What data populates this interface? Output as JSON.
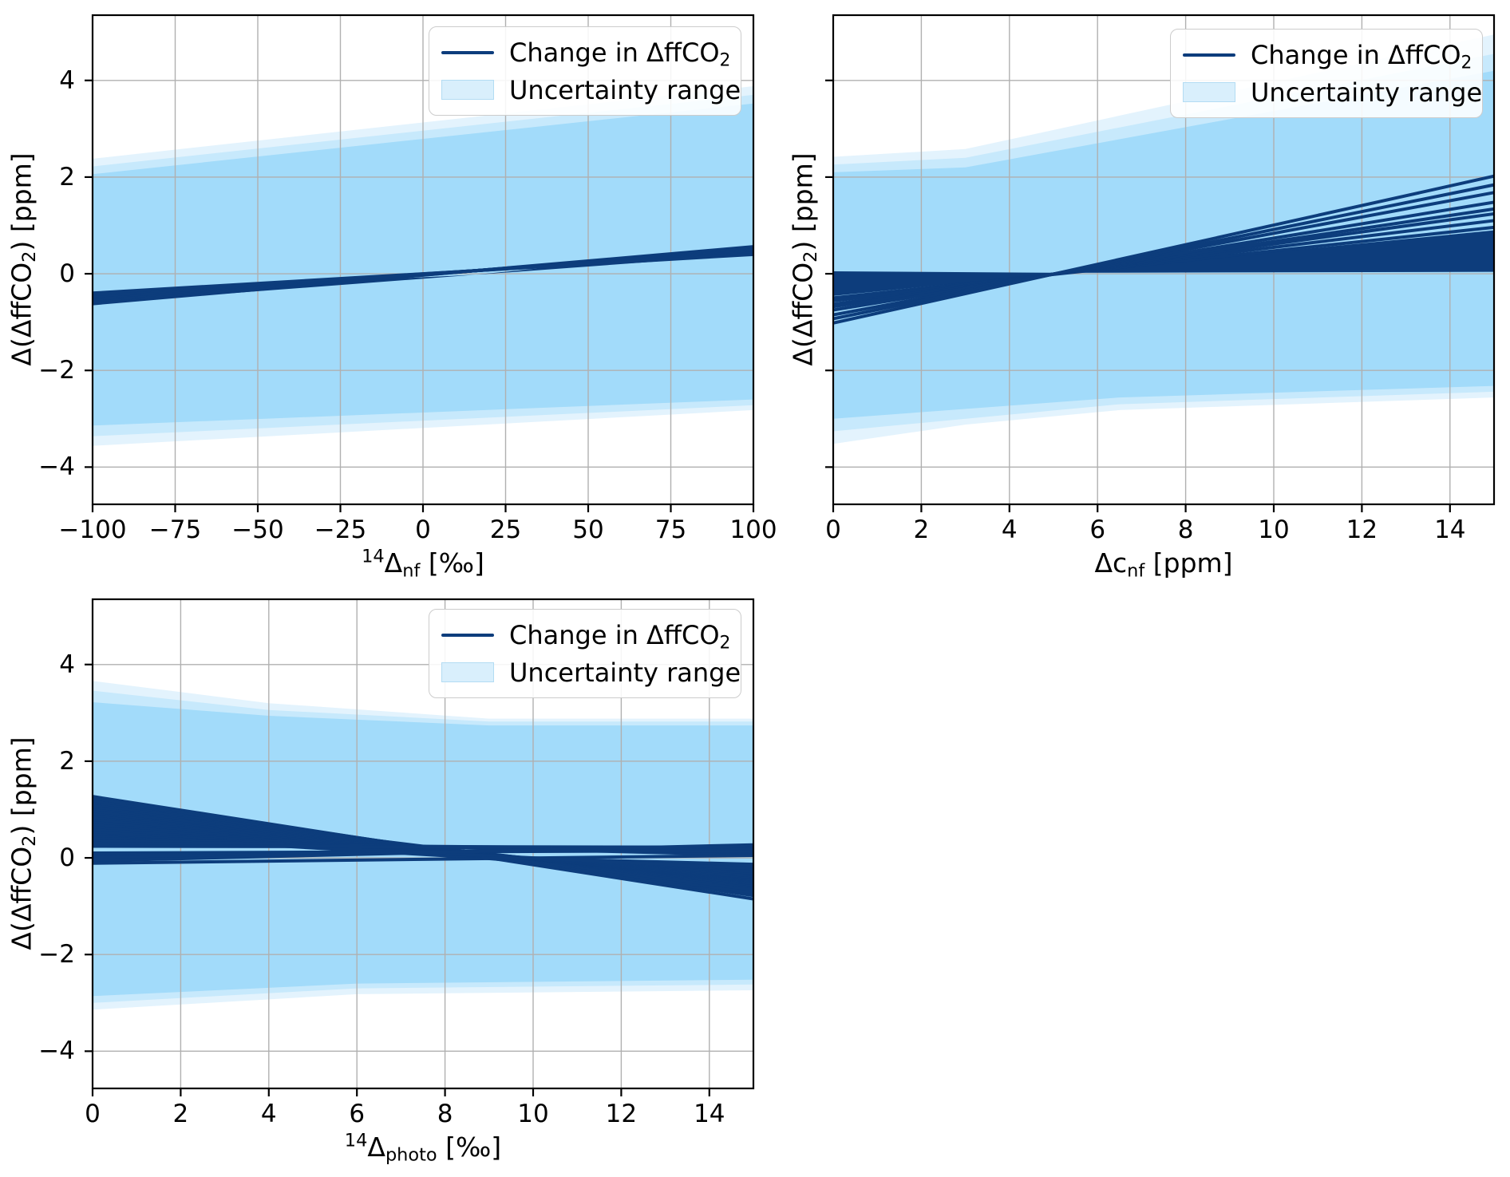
{
  "colors": {
    "navy": "#0d3d7c",
    "band_core": "#a2dbfa",
    "band_mid": "#c7e9fc",
    "band_faint": "#e3f3fd",
    "grid": "#b0b0b0",
    "spine": "#000000",
    "legend_bg": "rgba(255,255,255,0.88)",
    "legend_border": "#cccccc",
    "patch_fill": "#d9effc",
    "patch_border": "#b3dcf3"
  },
  "legend": {
    "line_label_pre": "Change in ΔffCO",
    "line_label_sub": "2",
    "patch_label": "Uncertainty range"
  },
  "chart_data": [
    {
      "type": "line",
      "title": "",
      "xlabel": {
        "sup": "14",
        "base": "Δ",
        "sub": "nf",
        "unit": " [‰]"
      },
      "ylabel": {
        "pre": "Δ(ΔffCO",
        "sub": "2",
        "post": ") [ppm]"
      },
      "xlim": [
        -100,
        100
      ],
      "ylim": [
        -4.77,
        5.35
      ],
      "grid": true,
      "legend_position": "upper right",
      "legend_entries": [
        "Change in ΔffCO₂",
        "Uncertainty range"
      ],
      "xticks": [
        {
          "v": -100,
          "label": "−100"
        },
        {
          "v": -75,
          "label": "−75"
        },
        {
          "v": -50,
          "label": "−50"
        },
        {
          "v": -25,
          "label": "−25"
        },
        {
          "v": 0,
          "label": "0"
        },
        {
          "v": 25,
          "label": "25"
        },
        {
          "v": 50,
          "label": "50"
        },
        {
          "v": 75,
          "label": "75"
        },
        {
          "v": 100,
          "label": "100"
        }
      ],
      "yticks": [
        {
          "v": 4,
          "label": "4"
        },
        {
          "v": 2,
          "label": "2"
        },
        {
          "v": 0,
          "label": "0"
        },
        {
          "v": -2,
          "label": "−2"
        },
        {
          "v": -4,
          "label": "−4"
        }
      ],
      "bands": [
        {
          "color": "band_faint",
          "upper": [
            [
              -100,
              2.38
            ],
            [
              100,
              3.88
            ]
          ],
          "lower": [
            [
              -100,
              -3.56
            ],
            [
              100,
              -2.82
            ]
          ]
        },
        {
          "color": "band_mid",
          "upper": [
            [
              -100,
              2.22
            ],
            [
              100,
              3.7
            ]
          ],
          "lower": [
            [
              -100,
              -3.36
            ],
            [
              100,
              -2.72
            ]
          ]
        },
        {
          "color": "band_core",
          "upper": [
            [
              -100,
              2.06
            ],
            [
              100,
              3.52
            ]
          ],
          "lower": [
            [
              -100,
              -3.14
            ],
            [
              100,
              -2.6
            ]
          ]
        }
      ],
      "wedges": [
        [
          [
            -100,
            -0.4
          ],
          [
            16,
            -0.02
          ],
          [
            -100,
            -0.62
          ]
        ],
        [
          [
            16,
            -0.02
          ],
          [
            100,
            0.56
          ],
          [
            100,
            0.4
          ]
        ]
      ],
      "lines": [
        {
          "x": [
            -100,
            100
          ],
          "y": [
            -0.62,
            0.56
          ]
        },
        {
          "x": [
            -100,
            100
          ],
          "y": [
            -0.59,
            0.538
          ]
        },
        {
          "x": [
            -100,
            100
          ],
          "y": [
            -0.557,
            0.515
          ]
        },
        {
          "x": [
            -100,
            100
          ],
          "y": [
            -0.526,
            0.49
          ]
        },
        {
          "x": [
            -100,
            100
          ],
          "y": [
            -0.494,
            0.47
          ]
        },
        {
          "x": [
            -100,
            100
          ],
          "y": [
            -0.463,
            0.447
          ]
        },
        {
          "x": [
            -100,
            100
          ],
          "y": [
            -0.431,
            0.424
          ]
        },
        {
          "x": [
            -100,
            100
          ],
          "y": [
            -0.4,
            0.4
          ]
        }
      ]
    },
    {
      "type": "line",
      "title": "",
      "xlabel": {
        "sup": "",
        "base": "Δc",
        "sub": "nf",
        "unit": " [ppm]"
      },
      "ylabel": {
        "pre": "Δ(ΔffCO",
        "sub": "2",
        "post": ") [ppm]"
      },
      "xlim": [
        0,
        15
      ],
      "ylim": [
        -4.77,
        5.35
      ],
      "grid": true,
      "legend_position": "upper right",
      "legend_entries": [
        "Change in ΔffCO₂",
        "Uncertainty range"
      ],
      "xticks": [
        {
          "v": 0,
          "label": "0"
        },
        {
          "v": 2,
          "label": "2"
        },
        {
          "v": 4,
          "label": "4"
        },
        {
          "v": 6,
          "label": "6"
        },
        {
          "v": 8,
          "label": "8"
        },
        {
          "v": 10,
          "label": "10"
        },
        {
          "v": 12,
          "label": "12"
        },
        {
          "v": 14,
          "label": "14"
        }
      ],
      "yticks": [
        {
          "v": 4,
          "label": ""
        },
        {
          "v": 2,
          "label": ""
        },
        {
          "v": 0,
          "label": ""
        },
        {
          "v": -2,
          "label": ""
        },
        {
          "v": -4,
          "label": ""
        }
      ],
      "bands": [
        {
          "color": "band_faint",
          "upper": [
            [
              0,
              2.42
            ],
            [
              3,
              2.58
            ],
            [
              15,
              4.95
            ]
          ],
          "lower": [
            [
              0,
              -3.52
            ],
            [
              3,
              -3.12
            ],
            [
              6.5,
              -2.82
            ],
            [
              15,
              -2.56
            ]
          ]
        },
        {
          "color": "band_mid",
          "upper": [
            [
              0,
              2.26
            ],
            [
              3,
              2.4
            ],
            [
              15,
              4.55
            ]
          ],
          "lower": [
            [
              0,
              -3.26
            ],
            [
              6.5,
              -2.7
            ],
            [
              15,
              -2.44
            ]
          ]
        },
        {
          "color": "band_core",
          "upper": [
            [
              0,
              2.1
            ],
            [
              3,
              2.2
            ],
            [
              15,
              4.2
            ]
          ],
          "lower": [
            [
              0,
              -3.0
            ],
            [
              6.5,
              -2.56
            ],
            [
              15,
              -2.32
            ]
          ]
        }
      ],
      "wedges": [
        [
          [
            0,
            0.05
          ],
          [
            0,
            -0.46
          ],
          [
            5.2,
            0.02
          ]
        ],
        [
          [
            5.2,
            0.02
          ],
          [
            15,
            0.9
          ],
          [
            15,
            0.04
          ]
        ]
      ],
      "lines": [
        {
          "x": [
            0,
            15
          ],
          "y": [
            -0.5,
            0.96
          ]
        },
        {
          "x": [
            0,
            15
          ],
          "y": [
            -0.56,
            1.1
          ]
        },
        {
          "x": [
            0,
            15
          ],
          "y": [
            -0.63,
            1.24
          ]
        },
        {
          "x": [
            0,
            15
          ],
          "y": [
            -0.68,
            1.34
          ]
        },
        {
          "x": [
            0,
            15
          ],
          "y": [
            -0.75,
            1.48
          ]
        },
        {
          "x": [
            0,
            15
          ],
          "y": [
            -0.85,
            1.68
          ]
        },
        {
          "x": [
            0,
            15
          ],
          "y": [
            -0.93,
            1.84
          ]
        },
        {
          "x": [
            0,
            15
          ],
          "y": [
            -1.02,
            2.02
          ]
        }
      ]
    },
    {
      "type": "line",
      "title": "",
      "xlabel": {
        "sup": "14",
        "base": "Δ",
        "sub": "photo",
        "unit": " [‰]"
      },
      "ylabel": {
        "pre": "Δ(ΔffCO",
        "sub": "2",
        "post": ") [ppm]"
      },
      "xlim": [
        0,
        15
      ],
      "ylim": [
        -4.77,
        5.35
      ],
      "grid": true,
      "legend_position": "upper right",
      "legend_entries": [
        "Change in ΔffCO₂",
        "Uncertainty range"
      ],
      "xticks": [
        {
          "v": 0,
          "label": "0"
        },
        {
          "v": 2,
          "label": "2"
        },
        {
          "v": 4,
          "label": "4"
        },
        {
          "v": 6,
          "label": "6"
        },
        {
          "v": 8,
          "label": "8"
        },
        {
          "v": 10,
          "label": "10"
        },
        {
          "v": 12,
          "label": "12"
        },
        {
          "v": 14,
          "label": "14"
        }
      ],
      "yticks": [
        {
          "v": 4,
          "label": "4"
        },
        {
          "v": 2,
          "label": "2"
        },
        {
          "v": 0,
          "label": "0"
        },
        {
          "v": -2,
          "label": "−2"
        },
        {
          "v": -4,
          "label": "−4"
        }
      ],
      "bands": [
        {
          "color": "band_faint",
          "upper": [
            [
              0,
              3.66
            ],
            [
              4,
              3.2
            ],
            [
              9,
              2.88
            ],
            [
              15,
              2.88
            ]
          ],
          "lower": [
            [
              0,
              -3.14
            ],
            [
              6,
              -2.82
            ],
            [
              15,
              -2.74
            ]
          ]
        },
        {
          "color": "band_mid",
          "upper": [
            [
              0,
              3.46
            ],
            [
              4,
              3.06
            ],
            [
              9,
              2.82
            ],
            [
              15,
              2.82
            ]
          ],
          "lower": [
            [
              0,
              -3.0
            ],
            [
              6,
              -2.7
            ],
            [
              15,
              -2.62
            ]
          ]
        },
        {
          "color": "band_core",
          "upper": [
            [
              0,
              3.22
            ],
            [
              4,
              2.94
            ],
            [
              9,
              2.74
            ],
            [
              15,
              2.74
            ]
          ],
          "lower": [
            [
              0,
              -2.86
            ],
            [
              6,
              -2.6
            ],
            [
              15,
              -2.52
            ]
          ]
        }
      ],
      "wedges": [
        [
          [
            0,
            1.12
          ],
          [
            0,
            0.44
          ],
          [
            8.6,
            -0.02
          ],
          [
            15,
            -0.46
          ],
          [
            15,
            -0.1
          ],
          [
            8.6,
            0.05
          ]
        ]
      ],
      "lines": [
        {
          "x": [
            0,
            15
          ],
          "y": [
            1.27,
            -0.85
          ]
        },
        {
          "x": [
            0,
            15
          ],
          "y": [
            1.22,
            -0.78
          ]
        },
        {
          "x": [
            0,
            15
          ],
          "y": [
            1.17,
            -0.72
          ]
        },
        {
          "x": [
            0,
            15
          ],
          "y": [
            1.12,
            -0.66
          ]
        },
        {
          "x": [
            0,
            15
          ],
          "y": [
            1.08,
            -0.6
          ]
        },
        {
          "x": [
            0,
            15
          ],
          "y": [
            1.03,
            -0.56
          ]
        },
        {
          "x": [
            0,
            15
          ],
          "y": [
            0.99,
            -0.53
          ]
        },
        {
          "x": [
            0,
            15
          ],
          "y": [
            0.95,
            -0.5
          ]
        },
        {
          "x": [
            0,
            15
          ],
          "y": [
            0.9,
            -0.48
          ]
        },
        {
          "x": [
            0,
            15
          ],
          "y": [
            0.86,
            -0.46
          ]
        },
        {
          "x": [
            0,
            15
          ],
          "y": [
            0.82,
            -0.44
          ]
        },
        {
          "x": [
            0,
            15
          ],
          "y": [
            0.78,
            -0.42
          ]
        },
        {
          "x": [
            0,
            15
          ],
          "y": [
            0.73,
            -0.4
          ]
        },
        {
          "x": [
            0,
            15
          ],
          "y": [
            0.68,
            -0.37
          ]
        },
        {
          "x": [
            0,
            15
          ],
          "y": [
            0.63,
            -0.34
          ]
        },
        {
          "x": [
            0,
            15
          ],
          "y": [
            0.58,
            -0.31
          ]
        },
        {
          "x": [
            0,
            15
          ],
          "y": [
            0.53,
            -0.28
          ]
        },
        {
          "x": [
            0,
            15
          ],
          "y": [
            0.48,
            -0.25
          ]
        },
        {
          "x": [
            0,
            15
          ],
          "y": [
            0.44,
            -0.22
          ]
        },
        {
          "x": [
            0,
            15
          ],
          "y": [
            0.4,
            0.06
          ]
        },
        {
          "x": [
            0,
            15
          ],
          "y": [
            0.35,
            0.12
          ]
        },
        {
          "x": [
            0,
            15
          ],
          "y": [
            0.3,
            0.18
          ]
        },
        {
          "x": [
            0,
            15
          ],
          "y": [
            0.24,
            0.22
          ]
        },
        {
          "x": [
            0,
            15
          ],
          "y": [
            0.1,
            0.15
          ]
        },
        {
          "x": [
            0,
            15
          ],
          "y": [
            0.04,
            0.2
          ]
        },
        {
          "x": [
            0,
            15
          ],
          "y": [
            0.0,
            0.24
          ]
        },
        {
          "x": [
            0,
            15
          ],
          "y": [
            -0.06,
            0.27
          ]
        },
        {
          "x": [
            0,
            15
          ],
          "y": [
            -0.11,
            0.05
          ]
        }
      ]
    }
  ]
}
